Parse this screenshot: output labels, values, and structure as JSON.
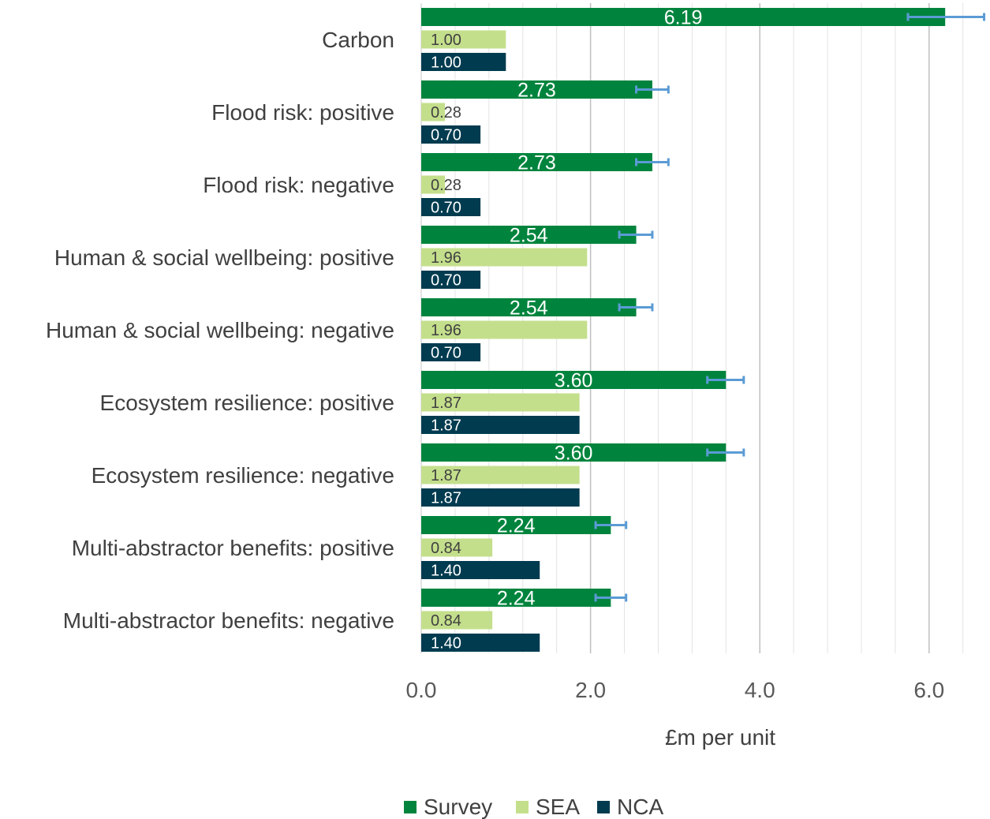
{
  "chart_data": {
    "type": "bar",
    "orientation": "horizontal",
    "categories": [
      "Carbon",
      "Flood risk: positive",
      "Flood risk: negative",
      "Human & social wellbeing: positive",
      "Human & social wellbeing: negative",
      "Ecosystem resilience: positive",
      "Ecosystem resilience: negative",
      "Multi-abstractor benefits: positive",
      "Multi-abstractor benefits: negative"
    ],
    "series": [
      {
        "name": "Survey",
        "color": "#00843D",
        "values": [
          6.19,
          2.73,
          2.73,
          2.54,
          2.54,
          3.6,
          3.6,
          2.24,
          2.24
        ],
        "labels": [
          "6.19",
          "2.73",
          "2.73",
          "2.54",
          "2.54",
          "3.60",
          "3.60",
          "2.24",
          "2.24"
        ],
        "error_low": [
          5.75,
          2.54,
          2.54,
          2.34,
          2.34,
          3.38,
          3.38,
          2.06,
          2.06
        ],
        "error_high": [
          6.65,
          2.92,
          2.92,
          2.73,
          2.73,
          3.81,
          3.81,
          2.42,
          2.42
        ]
      },
      {
        "name": "SEA",
        "color": "#C4DF8C",
        "values": [
          1.0,
          0.28,
          0.28,
          1.96,
          1.96,
          1.87,
          1.87,
          0.84,
          0.84
        ],
        "labels": [
          "1.00",
          "0.28",
          "0.28",
          "1.96",
          "1.96",
          "1.87",
          "1.87",
          "0.84",
          "0.84"
        ]
      },
      {
        "name": "NCA",
        "color": "#003B4F",
        "values": [
          1.0,
          0.7,
          0.7,
          0.7,
          0.7,
          1.87,
          1.87,
          1.4,
          1.4
        ],
        "labels": [
          "1.00",
          "0.70",
          "0.70",
          "0.70",
          "0.70",
          "1.87",
          "1.87",
          "1.40",
          "1.40"
        ]
      }
    ],
    "xlabel": "£m per unit",
    "xlim": [
      0,
      6.4
    ],
    "xticks": [
      0,
      2,
      4,
      6
    ],
    "xtick_labels": [
      "0.0",
      "2.0",
      "4.0",
      "6.0"
    ],
    "minor_gridline_step": 0.4,
    "error_bar_color": "#5B9BD5",
    "legend_position": "bottom",
    "grid": true
  }
}
